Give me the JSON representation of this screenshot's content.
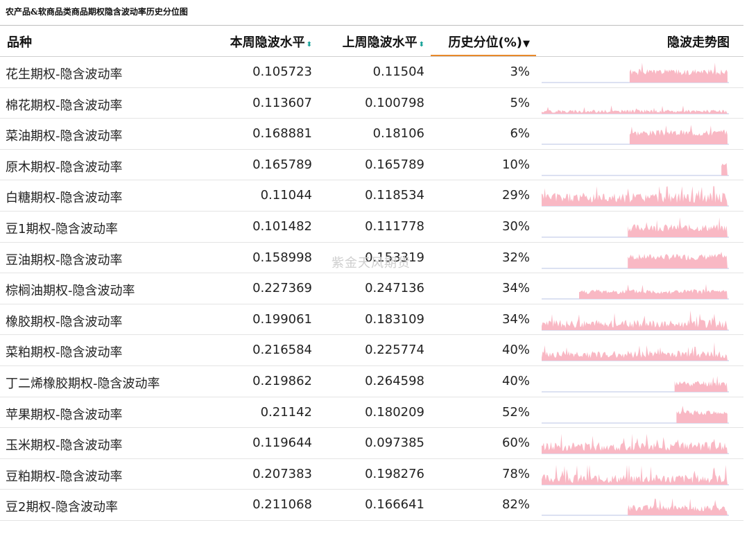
{
  "title": "农产品&软商品类商品期权隐含波动率历史分位图",
  "columns": {
    "variety": "品种",
    "current": "本周隐波水平",
    "previous": "上周隐波水平",
    "percentile": "历史分位(%)",
    "trend": "隐波走势图"
  },
  "icons": {
    "sort": "sort-both-icon",
    "sort_active": "sort-desc-icon"
  },
  "colors": {
    "sparkline_fill": "#f9b8c4",
    "sparkline_base": "#b9c3e6",
    "header_underline": "#e8892a",
    "sort_icon": "#1aa39a"
  },
  "watermark": "紫金天风期货",
  "chart_data": {
    "type": "table",
    "title": "农产品&软商品类商品期权隐含波动率历史分位图",
    "columns": [
      "品种",
      "本周隐波水平",
      "上周隐波水平",
      "历史分位(%)",
      "隐波走势图"
    ],
    "sorted_by": "历史分位(%)",
    "rows": [
      {
        "name": "花生期权-隐含波动率",
        "current": "0.105723",
        "previous": "0.11504",
        "percentile": "3%",
        "spark_start": 0.47,
        "spark_level": 0.5,
        "spark_noise": 0.15
      },
      {
        "name": "棉花期权-隐含波动率",
        "current": "0.113607",
        "previous": "0.100798",
        "percentile": "5%",
        "spark_start": 0.0,
        "spark_level": 0.12,
        "spark_noise": 0.08
      },
      {
        "name": "菜油期权-隐含波动率",
        "current": "0.168881",
        "previous": "0.18106",
        "percentile": "6%",
        "spark_start": 0.47,
        "spark_level": 0.55,
        "spark_noise": 0.15
      },
      {
        "name": "原木期权-隐含波动率",
        "current": "0.165789",
        "previous": "0.165789",
        "percentile": "10%",
        "spark_start": 0.96,
        "spark_level": 0.55,
        "spark_noise": 0.1
      },
      {
        "name": "白糖期权-隐含波动率",
        "current": "0.11044",
        "previous": "0.118534",
        "percentile": "29%",
        "spark_start": 0.0,
        "spark_level": 0.4,
        "spark_noise": 0.25
      },
      {
        "name": "豆1期权-隐含波动率",
        "current": "0.101482",
        "previous": "0.111778",
        "percentile": "30%",
        "spark_start": 0.46,
        "spark_level": 0.45,
        "spark_noise": 0.18
      },
      {
        "name": "豆油期权-隐含波动率",
        "current": "0.158998",
        "previous": "0.153319",
        "percentile": "32%",
        "spark_start": 0.46,
        "spark_level": 0.55,
        "spark_noise": 0.15
      },
      {
        "name": "棕榈油期权-隐含波动率",
        "current": "0.227369",
        "previous": "0.247136",
        "percentile": "34%",
        "spark_start": 0.2,
        "spark_level": 0.35,
        "spark_noise": 0.12
      },
      {
        "name": "橡胶期权-隐含波动率",
        "current": "0.199061",
        "previous": "0.183109",
        "percentile": "34%",
        "spark_start": 0.0,
        "spark_level": 0.3,
        "spark_noise": 0.2
      },
      {
        "name": "菜粕期权-隐含波动率",
        "current": "0.216584",
        "previous": "0.225774",
        "percentile": "40%",
        "spark_start": 0.0,
        "spark_level": 0.3,
        "spark_noise": 0.18
      },
      {
        "name": "丁二烯橡胶期权-隐含波动率",
        "current": "0.219862",
        "previous": "0.264598",
        "percentile": "40%",
        "spark_start": 0.71,
        "spark_level": 0.4,
        "spark_noise": 0.15
      },
      {
        "name": "苹果期权-隐含波动率",
        "current": "0.21142",
        "previous": "0.180209",
        "percentile": "52%",
        "spark_start": 0.72,
        "spark_level": 0.5,
        "spark_noise": 0.12
      },
      {
        "name": "玉米期权-隐含波动率",
        "current": "0.119644",
        "previous": "0.097385",
        "percentile": "60%",
        "spark_start": 0.0,
        "spark_level": 0.35,
        "spark_noise": 0.22
      },
      {
        "name": "豆粕期权-隐含波动率",
        "current": "0.207383",
        "previous": "0.198276",
        "percentile": "78%",
        "spark_start": 0.0,
        "spark_level": 0.3,
        "spark_noise": 0.22
      },
      {
        "name": "豆2期权-隐含波动率",
        "current": "0.211068",
        "previous": "0.166641",
        "percentile": "82%",
        "spark_start": 0.46,
        "spark_level": 0.35,
        "spark_noise": 0.15
      }
    ]
  }
}
